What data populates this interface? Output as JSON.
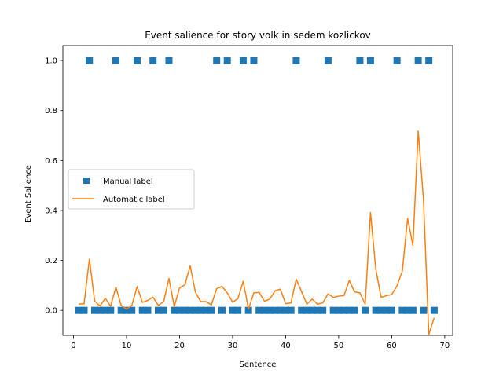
{
  "chart_data": {
    "type": "scatter",
    "title": "Event salience for story volk in sedem kozlickov",
    "xlabel": "Sentence",
    "ylabel": "Event Salience",
    "xlim": [
      -2,
      71.5
    ],
    "ylim": [
      -0.1,
      1.06
    ],
    "xticks": [
      0,
      10,
      20,
      30,
      40,
      50,
      60,
      70
    ],
    "yticks": [
      0.0,
      0.2,
      0.4,
      0.6,
      0.8,
      1.0
    ],
    "xtick_labels": [
      "0",
      "10",
      "20",
      "30",
      "40",
      "50",
      "60",
      "70"
    ],
    "ytick_labels": [
      "0.0",
      "0.2",
      "0.4",
      "0.6",
      "0.8",
      "1.0"
    ],
    "grid": false,
    "legend_position": "center-left",
    "series": [
      {
        "name": "Manual label",
        "type": "scatter",
        "marker": "square",
        "color": "#1f77b4",
        "x": [
          1,
          2,
          3,
          4,
          5,
          6,
          7,
          8,
          9,
          10,
          11,
          12,
          13,
          14,
          15,
          16,
          17,
          18,
          19,
          20,
          21,
          22,
          23,
          24,
          25,
          26,
          27,
          28,
          29,
          30,
          31,
          32,
          33,
          34,
          35,
          36,
          37,
          38,
          39,
          40,
          41,
          42,
          43,
          44,
          45,
          46,
          47,
          48,
          49,
          50,
          51,
          52,
          53,
          54,
          55,
          56,
          57,
          58,
          59,
          60,
          61,
          62,
          63,
          64,
          65,
          66,
          67,
          68
        ],
        "y": [
          0,
          0,
          1,
          0,
          0,
          0,
          0,
          1,
          0,
          0,
          0,
          1,
          0,
          0,
          1,
          0,
          0,
          1,
          0,
          0,
          0,
          0,
          0,
          0,
          0,
          0,
          1,
          0,
          1,
          0,
          0,
          1,
          0,
          1,
          0,
          0,
          0,
          0,
          0,
          0,
          0,
          1,
          0,
          0,
          0,
          0,
          0,
          1,
          0,
          0,
          0,
          0,
          0,
          1,
          0,
          1,
          0,
          0,
          0,
          0,
          1,
          0,
          0,
          0,
          1,
          0,
          1,
          0
        ]
      },
      {
        "name": "Automatic label",
        "type": "line",
        "color": "#ff7f0e",
        "x": [
          1,
          2,
          3,
          4,
          5,
          6,
          7,
          8,
          9,
          10,
          11,
          12,
          13,
          14,
          15,
          16,
          17,
          18,
          19,
          20,
          21,
          22,
          23,
          24,
          25,
          26,
          27,
          28,
          29,
          30,
          31,
          32,
          33,
          34,
          35,
          36,
          37,
          38,
          39,
          40,
          41,
          42,
          43,
          44,
          45,
          46,
          47,
          48,
          49,
          50,
          51,
          52,
          53,
          54,
          55,
          56,
          57,
          58,
          59,
          60,
          61,
          62,
          63,
          64,
          65,
          66,
          67,
          68
        ],
        "y": [
          0.025,
          0.027,
          0.205,
          0.037,
          0.018,
          0.048,
          0.017,
          0.093,
          0.02,
          0.005,
          0.02,
          0.095,
          0.032,
          0.04,
          0.053,
          0.02,
          0.035,
          0.128,
          0.015,
          0.09,
          0.102,
          0.178,
          0.072,
          0.035,
          0.035,
          0.022,
          0.087,
          0.096,
          0.07,
          0.033,
          0.047,
          0.116,
          0.006,
          0.07,
          0.072,
          0.037,
          0.045,
          0.078,
          0.085,
          0.027,
          0.03,
          0.125,
          0.075,
          0.025,
          0.045,
          0.025,
          0.03,
          0.066,
          0.052,
          0.057,
          0.059,
          0.12,
          0.074,
          0.07,
          0.025,
          0.392,
          0.165,
          0.052,
          0.059,
          0.063,
          0.098,
          0.157,
          0.368,
          0.26,
          0.717,
          0.44,
          -0.097,
          -0.03
        ]
      }
    ]
  }
}
